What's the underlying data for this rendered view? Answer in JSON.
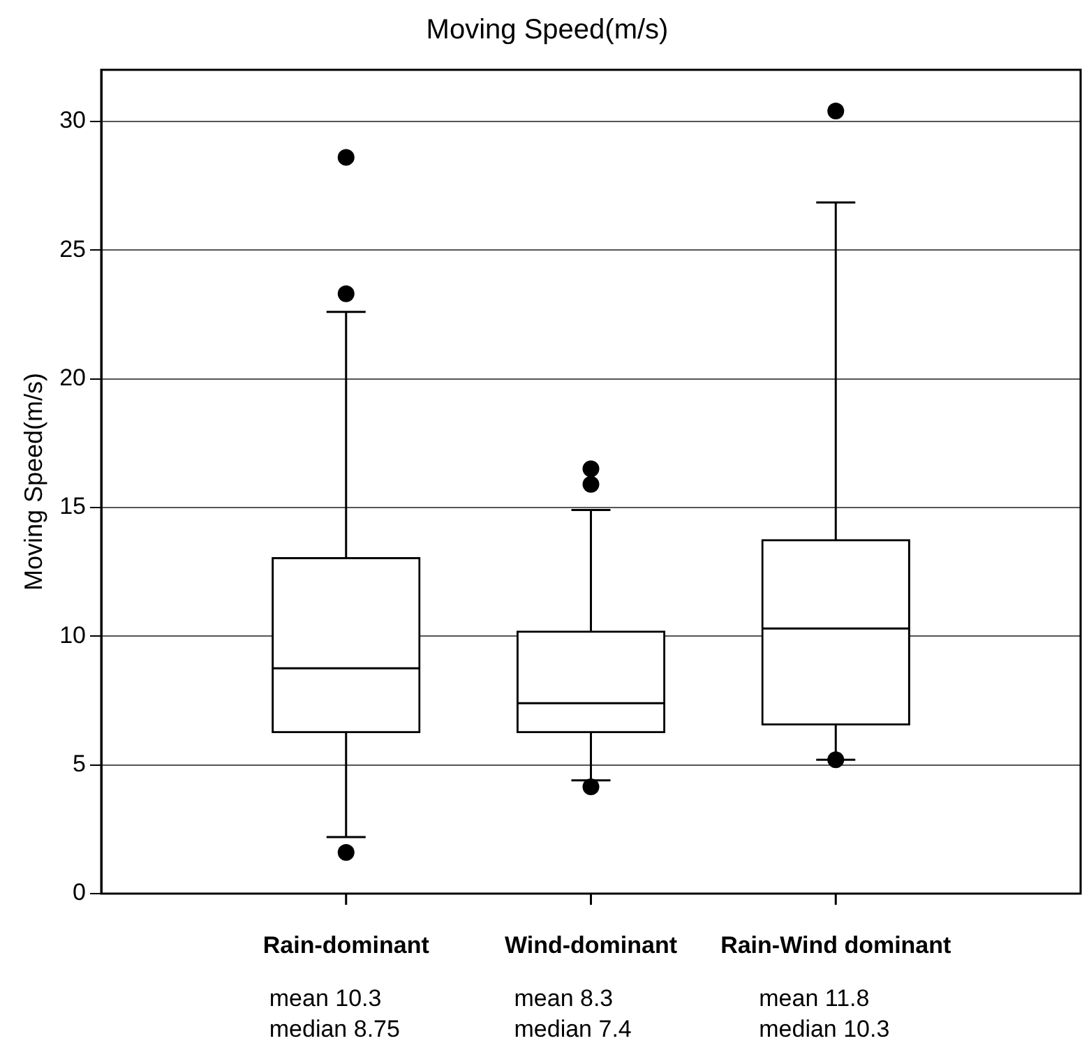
{
  "chart_data": {
    "type": "box",
    "title": "Moving Speed(m/s)",
    "ylabel": "Moving Speed(m/s)",
    "categories": [
      "Rain-dominant",
      "Wind-dominant",
      "Rain-Wind dominant"
    ],
    "boxes": [
      {
        "low": 2.2,
        "q1": 6.25,
        "median": 8.75,
        "q3": 13.05,
        "high": 22.6,
        "outliers": [
          1.6,
          23.3,
          28.6
        ]
      },
      {
        "low": 4.4,
        "q1": 6.25,
        "median": 7.4,
        "q3": 10.2,
        "high": 14.9,
        "outliers": [
          4.15,
          15.9,
          16.5
        ]
      },
      {
        "low": 5.2,
        "q1": 6.55,
        "median": 10.3,
        "q3": 13.75,
        "high": 26.85,
        "outliers": [
          5.2,
          30.4
        ]
      }
    ],
    "color": "#000000",
    "ylim": [
      0,
      32
    ],
    "yticks": [
      0,
      5,
      10,
      15,
      20,
      25,
      30
    ],
    "grid": "y",
    "annotations": [
      "mean 10.3",
      "median 8.75",
      "mean 8.3",
      "median 7.4",
      "mean 11.8",
      "median 10.3"
    ]
  }
}
